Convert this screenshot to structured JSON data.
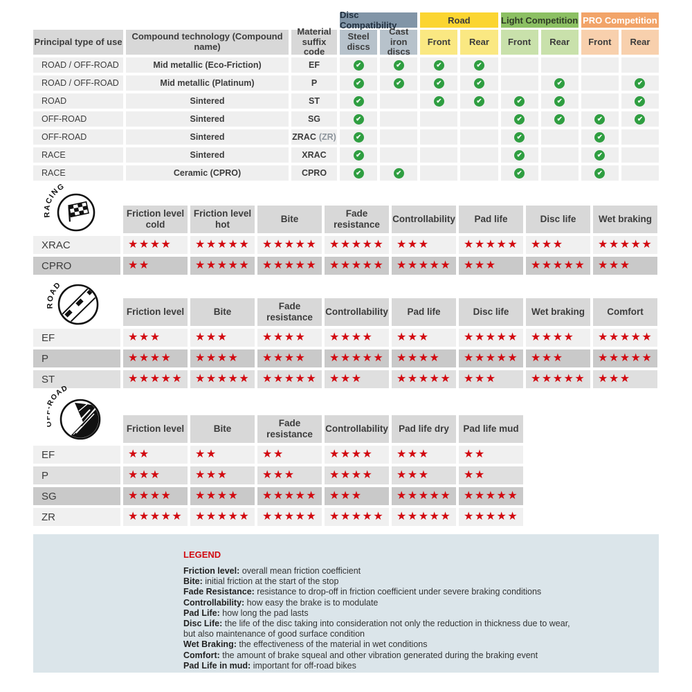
{
  "compatibility_table": {
    "header_columns": [
      {
        "label": "Principal type of use"
      },
      {
        "label": "Compound technology (Compound name)"
      },
      {
        "label": "Material suffix code"
      }
    ],
    "groups": [
      {
        "label": "Disc Compatibility",
        "header_bg": "#8195a7",
        "header_text": "#223140",
        "sub_bg": "#b7c2cb",
        "subs": [
          "Steel discs",
          "Cast iron discs"
        ]
      },
      {
        "label": "Road",
        "header_bg": "#fbd531",
        "header_text": "#3c3c3c",
        "sub_bg": "#fae882",
        "subs": [
          "Front",
          "Rear"
        ]
      },
      {
        "label": "Light Competition",
        "header_bg": "#8cc063",
        "header_text": "#2f3b26",
        "sub_bg": "#c9e1ab",
        "subs": [
          "Front",
          "Rear"
        ]
      },
      {
        "label": "PRO Competition",
        "header_bg": "#f2a469",
        "header_text": "#ffffff",
        "sub_bg": "#f8d0ad",
        "subs": [
          "Front",
          "Rear"
        ]
      }
    ],
    "check_color": "#2f9e41",
    "check_glyph": "✔",
    "rows": [
      {
        "use": "ROAD / OFF-ROAD",
        "compound": "Mid metallic (Eco-Friction)",
        "suffix": "EF",
        "suffix_note": "",
        "checks": [
          1,
          1,
          1,
          1,
          0,
          0,
          0,
          0
        ]
      },
      {
        "use": "ROAD / OFF-ROAD",
        "compound": "Mid metallic (Platinum)",
        "suffix": "P",
        "suffix_note": "",
        "checks": [
          1,
          1,
          1,
          1,
          0,
          1,
          0,
          1
        ]
      },
      {
        "use": "ROAD",
        "compound": "Sintered",
        "suffix": "ST",
        "suffix_note": "",
        "checks": [
          1,
          0,
          1,
          1,
          1,
          1,
          0,
          1
        ]
      },
      {
        "use": "OFF-ROAD",
        "compound": "Sintered",
        "suffix": "SG",
        "suffix_note": "",
        "checks": [
          1,
          0,
          0,
          0,
          1,
          1,
          1,
          1
        ]
      },
      {
        "use": "OFF-ROAD",
        "compound": "Sintered",
        "suffix": "ZRAC",
        "suffix_note": "(ZR)",
        "checks": [
          1,
          0,
          0,
          0,
          1,
          0,
          1,
          0
        ]
      },
      {
        "use": "RACE",
        "compound": "Sintered",
        "suffix": "XRAC",
        "suffix_note": "",
        "checks": [
          1,
          0,
          0,
          0,
          1,
          0,
          1,
          0
        ]
      },
      {
        "use": "RACE",
        "compound": "Ceramic (CPRO)",
        "suffix": "CPRO",
        "suffix_note": "",
        "checks": [
          1,
          1,
          0,
          0,
          1,
          0,
          1,
          0
        ]
      }
    ]
  },
  "star_color": "#d20a11",
  "star_glyph": "★",
  "rating_sections": [
    {
      "id": "racing",
      "icon_label": "RACING",
      "columns": [
        "Friction level cold",
        "Friction level hot",
        "Bite",
        "Fade resistance",
        "Controllability",
        "Pad life",
        "Disc life",
        "Wet braking"
      ],
      "rows": [
        {
          "label": "XRAC",
          "shade": "light",
          "stars": [
            4,
            5,
            5,
            5,
            3,
            5,
            3,
            5
          ]
        },
        {
          "label": "CPRO",
          "shade": "dark",
          "stars": [
            2,
            5,
            5,
            5,
            5,
            3,
            5,
            3
          ]
        }
      ]
    },
    {
      "id": "road",
      "icon_label": "ROAD",
      "columns": [
        "Friction level",
        "Bite",
        "Fade resistance",
        "Controllability",
        "Pad life",
        "Disc life",
        "Wet braking",
        "Comfort"
      ],
      "rows": [
        {
          "label": "EF",
          "shade": "light",
          "stars": [
            3,
            3,
            4,
            4,
            3,
            5,
            4,
            5
          ]
        },
        {
          "label": "P",
          "shade": "dark",
          "stars": [
            4,
            4,
            4,
            5,
            4,
            5,
            3,
            5
          ]
        },
        {
          "label": "ST",
          "shade": "medium",
          "stars": [
            5,
            5,
            5,
            3,
            5,
            3,
            5,
            3
          ]
        }
      ]
    },
    {
      "id": "offroad",
      "icon_label": "OFF-ROAD",
      "columns": [
        "Friction level",
        "Bite",
        "Fade resistance",
        "Controllability",
        "Pad life dry",
        "Pad life mud"
      ],
      "rows": [
        {
          "label": "EF",
          "shade": "light",
          "stars": [
            2,
            2,
            2,
            4,
            3,
            2
          ]
        },
        {
          "label": "P",
          "shade": "medium",
          "stars": [
            3,
            3,
            3,
            4,
            3,
            2
          ]
        },
        {
          "label": "SG",
          "shade": "dark",
          "stars": [
            4,
            4,
            5,
            3,
            5,
            5
          ]
        },
        {
          "label": "ZR",
          "shade": "light",
          "stars": [
            5,
            5,
            5,
            5,
            5,
            5
          ]
        }
      ]
    }
  ],
  "legend": {
    "title": "LEGEND",
    "title_color": "#d20a11",
    "panel_bg": "#dbe5ea",
    "entries": [
      {
        "term": "Friction level",
        "desc": "overall mean friction coefficient"
      },
      {
        "term": "Bite",
        "desc": "initial friction at the start of the stop"
      },
      {
        "term": "Fade Resistance",
        "desc": "resistance to drop-off in friction coefficient under severe braking conditions"
      },
      {
        "term": "Controllability",
        "desc": "how easy the brake is to modulate"
      },
      {
        "term": "Pad Life",
        "desc": "how long the pad lasts"
      },
      {
        "term": "Disc Life",
        "desc": "the life of the disc taking into consideration not only the reduction in thickness due to wear,"
      },
      {
        "term": "",
        "desc": "but also maintenance of good surface condition"
      },
      {
        "term": "Wet Braking",
        "desc": "the effectiveness of the material in wet conditions"
      },
      {
        "term": "Comfort",
        "desc": "the amount of brake squeal and other vibration generated during the braking event"
      },
      {
        "term": "Pad Life in mud",
        "desc": "important for off-road bikes"
      }
    ]
  }
}
